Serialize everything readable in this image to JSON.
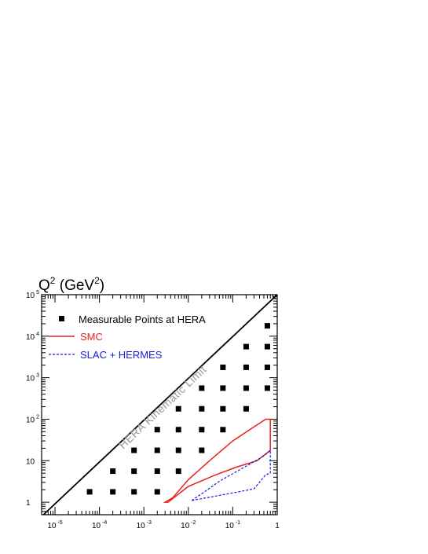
{
  "chart_data": {
    "type": "scatter",
    "ylabel": {
      "base": "Q",
      "sup1": "2",
      "unit_open": " (GeV",
      "sup2": "2",
      "unit_close": ")"
    },
    "x_scale": "log",
    "y_scale": "log",
    "xlim": [
      5e-06,
      1
    ],
    "ylim": [
      0.5,
      100000
    ],
    "x_ticks": [
      {
        "value": 1e-05,
        "base": "10",
        "exp": "-5"
      },
      {
        "value": 0.0001,
        "base": "10",
        "exp": "-4"
      },
      {
        "value": 0.001,
        "base": "10",
        "exp": "-3"
      },
      {
        "value": 0.01,
        "base": "10",
        "exp": "-2"
      },
      {
        "value": 0.1,
        "base": "10",
        "exp": "-1"
      },
      {
        "value": 1,
        "base": "1",
        "exp": ""
      }
    ],
    "y_ticks": [
      {
        "value": 1,
        "base": "1",
        "exp": ""
      },
      {
        "value": 10,
        "base": "10",
        "exp": ""
      },
      {
        "value": 100,
        "base": "10",
        "exp": "2"
      },
      {
        "value": 1000,
        "base": "10",
        "exp": "3"
      },
      {
        "value": 10000,
        "base": "10",
        "exp": "4"
      },
      {
        "value": 100000,
        "base": "10",
        "exp": "5"
      }
    ],
    "grid": false,
    "legend_position": "top-left",
    "legend": [
      {
        "label": "Measurable Points at HERA",
        "marker": "square",
        "color": "#000000"
      },
      {
        "label": "SMC",
        "marker": "solid-line",
        "color": "#e8201e"
      },
      {
        "label": "SLAC + HERMES",
        "marker": "dashed-line",
        "color": "#1a1ae0"
      }
    ],
    "kinematic_limit": {
      "label": "HERA Kinematic Limit",
      "points": [
        [
          5.5e-06,
          0.5
        ],
        [
          1,
          100000
        ]
      ],
      "color": "#000000"
    },
    "series": [
      {
        "name": "Measurable Points at HERA",
        "type": "scatter",
        "color": "#000000",
        "points": [
          [
            6e-05,
            1.78
          ],
          [
            0.0002,
            1.78
          ],
          [
            0.0006,
            1.78
          ],
          [
            0.002,
            1.78
          ],
          [
            0.0002,
            5.6
          ],
          [
            0.0006,
            5.6
          ],
          [
            0.002,
            5.6
          ],
          [
            0.006,
            5.6
          ],
          [
            0.0006,
            17.8
          ],
          [
            0.002,
            17.8
          ],
          [
            0.006,
            17.8
          ],
          [
            0.02,
            17.8
          ],
          [
            0.002,
            56
          ],
          [
            0.006,
            56
          ],
          [
            0.02,
            56
          ],
          [
            0.06,
            56
          ],
          [
            0.006,
            178
          ],
          [
            0.02,
            178
          ],
          [
            0.06,
            178
          ],
          [
            0.2,
            178
          ],
          [
            0.02,
            560
          ],
          [
            0.06,
            560
          ],
          [
            0.2,
            560
          ],
          [
            0.6,
            560
          ],
          [
            0.06,
            1780
          ],
          [
            0.2,
            1780
          ],
          [
            0.6,
            1780
          ],
          [
            0.2,
            5600
          ],
          [
            0.6,
            5600
          ],
          [
            0.6,
            17800
          ]
        ]
      },
      {
        "name": "SMC",
        "type": "polygon",
        "color": "#e8201e",
        "points": [
          [
            0.003,
            1.0
          ],
          [
            0.0035,
            1.0
          ],
          [
            0.01,
            2.4
          ],
          [
            0.04,
            4.5
          ],
          [
            0.12,
            7.0
          ],
          [
            0.35,
            10.0
          ],
          [
            0.7,
            17.8
          ],
          [
            0.7,
            100
          ],
          [
            0.55,
            100
          ],
          [
            0.3,
            65
          ],
          [
            0.1,
            30
          ],
          [
            0.03,
            10
          ],
          [
            0.01,
            3.5
          ],
          [
            0.0045,
            1.3
          ],
          [
            0.003,
            1.0
          ]
        ]
      },
      {
        "name": "SLAC + HERMES",
        "type": "polygon",
        "color": "#1a1ae0",
        "points": [
          [
            0.012,
            1.1
          ],
          [
            0.08,
            1.6
          ],
          [
            0.3,
            2.1
          ],
          [
            0.55,
            4.6
          ],
          [
            0.7,
            5.0
          ],
          [
            0.7,
            17.8
          ],
          [
            0.5,
            13
          ],
          [
            0.15,
            6.2
          ],
          [
            0.05,
            3.2
          ],
          [
            0.02,
            1.6
          ],
          [
            0.012,
            1.1
          ]
        ]
      }
    ]
  }
}
